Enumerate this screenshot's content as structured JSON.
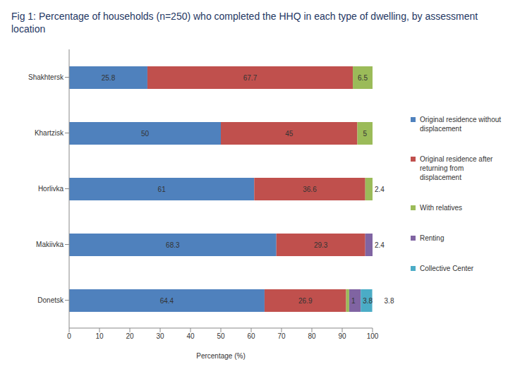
{
  "chart_data": {
    "type": "bar",
    "title": "Fig 1: Percentage of households (n=250) who completed the HHQ in each type of dwelling, by assessment location",
    "xlabel": "Percentage (%)",
    "categories": [
      "Shakhtersk",
      "Khartzisk",
      "Horlivka",
      "Makiivka",
      "Donetsk"
    ],
    "series": [
      {
        "name": "Original residence without displacement",
        "color": "#4f81bd",
        "values": [
          25.8,
          50,
          61,
          68.3,
          64.4
        ]
      },
      {
        "name": "Original residence after returning from displacement",
        "color": "#c0504d",
        "values": [
          67.7,
          45,
          36.6,
          29.3,
          26.9
        ]
      },
      {
        "name": "With relatives",
        "color": "#9bbb59",
        "values": [
          6.5,
          5,
          2.4,
          0,
          1
        ]
      },
      {
        "name": "Renting",
        "color": "#8064a2",
        "values": [
          0,
          0,
          0,
          2.4,
          3.8
        ]
      },
      {
        "name": "Collective Center",
        "color": "#4bacc6",
        "values": [
          null,
          null,
          0,
          null,
          3.8
        ]
      }
    ],
    "orientation": "horizontal",
    "stacked": true,
    "data_labels": true,
    "xlim": [
      0,
      100
    ],
    "xticks": [
      0,
      10,
      20,
      30,
      40,
      50,
      60,
      70,
      80,
      90,
      100
    ],
    "grid": false,
    "legend": "right"
  }
}
